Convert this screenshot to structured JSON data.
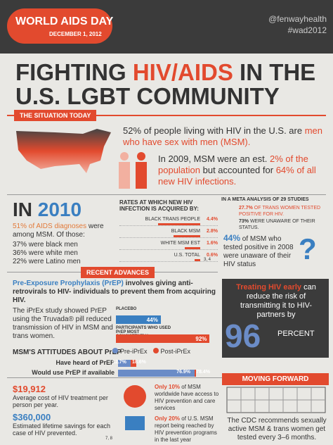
{
  "header": {
    "event": "WORLD AIDS DAY",
    "date": "DECEMBER 1, 2012",
    "handle": "@fenwayhealth",
    "hashtag": "#wad2012"
  },
  "title": {
    "part1": "FIGHTING ",
    "highlight": "HIV/AIDS",
    "part2": " IN THE",
    "line2": "U.S. LGBT COMMUNITY"
  },
  "situation": {
    "heading": "THE SITUATION TODAY",
    "stat1": {
      "text": "52% of people living with HIV in the U.S. are ",
      "highlight": "men who have sex with men (MSM)."
    },
    "stat2": {
      "text1": "In 2009, MSM were an est. ",
      "highlight1": "2% of the population",
      "text2": " but accounted for ",
      "highlight2": "64% of all new HIV infections."
    },
    "year": {
      "prefix": "IN ",
      "value": "2010",
      "lead": "51% of AIDS diagnoses",
      "lead_rest": " were among MSM. Of those:",
      "lines": [
        "37% were black men",
        "36% were white men",
        "22% were Latino men"
      ]
    },
    "rates": {
      "heading": "RATES AT WHICH NEW HIV INFECTION IS ACQUIRED BY:",
      "rows": [
        {
          "name": "BLACK TRANS PEOPLE",
          "value": 4.4,
          "value_label": "4.4%"
        },
        {
          "name": "BLACK MSM",
          "value": 2.8,
          "value_label": "2.8%"
        },
        {
          "name": "WHITE MSM EST",
          "value": 1.6,
          "value_label": "1.6%"
        },
        {
          "name": "U.S. TOTAL",
          "value": 0.6,
          "value_label": "0.6%"
        }
      ],
      "note": "3, 4"
    },
    "meta": {
      "heading": "IN A META ANALYSIS OF 29 STUDIES",
      "stat1_value": "27.7%",
      "stat1_text": " OF TRANS WOMEN TESTED POSITIVE FOR HIV.",
      "stat2_value": "73%",
      "stat2_text": " WERE UNAWARE OF THEIR STATUS."
    },
    "unaware": {
      "value": "44%",
      "text": " of MSM who tested positive in 2008 were unaware of their HIV status"
    }
  },
  "advances": {
    "heading": "RECENT ADVANCES",
    "prep": {
      "highlight": "Pre-Exposure Prophylaxis (PrEP)",
      "text": " involves giving anti-retrovirals to HIV- individuals to prevent them from acquiring HIV."
    },
    "iprex": {
      "text": "The iPrEx study showed PrEP using the Truvada® pill reduced transmission of HIV in MSM and trans women.",
      "bars": [
        {
          "name": "PLACEBO",
          "value": 44,
          "value_label": "44%"
        },
        {
          "name": "PARTICIPANTS WHO USED PrEP MOST CONSISTENTLY",
          "value": 92,
          "value_label": "92%"
        }
      ]
    },
    "attitudes": {
      "heading": "MSM'S ATTITUDES ABOUT PrEP",
      "legend": [
        {
          "name": "Pre-iPrEx",
          "color": "#6b8cc7"
        },
        {
          "name": "Post-iPrEx",
          "color": "#e24a2e"
        }
      ],
      "rows": [
        {
          "name": "Have heard of PrEP",
          "values": [
            12.7,
            18.6
          ],
          "value_labels": [
            "12.7%",
            "18.6%"
          ]
        },
        {
          "name": "Would use PrEP if available",
          "values": [
            76.9,
            78.4
          ],
          "value_labels": [
            "76.9%",
            "78.4%"
          ]
        }
      ]
    },
    "treating": {
      "highlight": "Treating HIV early",
      "text": " can reduce the risk of transmitting it to HIV- partners by",
      "number": "96",
      "unit": "PERCENT"
    }
  },
  "costs": {
    "value1": "$19,912",
    "text1": "Average cost of HIV treatment per person per year.",
    "value2": "$360,000",
    "text2": "Estimated lifetime savings for each case of HIV prevented.",
    "note": "7, 8"
  },
  "access": {
    "s1_highlight": "Only 10%",
    "s1_text": " of MSM worldwide have access to HIV prevention and care services",
    "s2_highlight": "Only 20%",
    "s2_text": " of U.S. MSM report being reached by HIV prevention programs in the last year"
  },
  "forward": {
    "heading": "MOVING FORWARD",
    "text": "The CDC recommends sexually active MSM & trans women get tested every 3–6 months."
  }
}
